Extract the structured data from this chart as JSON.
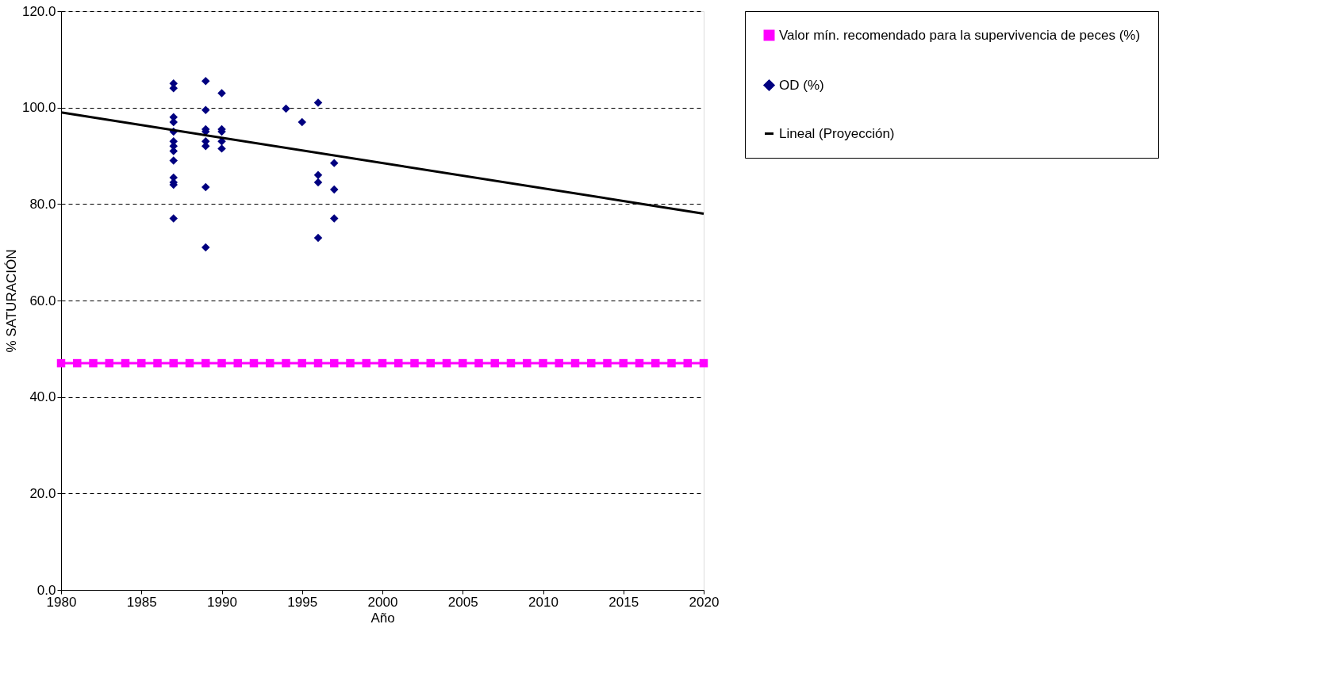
{
  "chart_data": {
    "type": "scatter",
    "xlabel": "Año",
    "ylabel": "% SATURACIÓN",
    "xlim": [
      1980,
      2020
    ],
    "xticks": [
      1980,
      1985,
      1990,
      1995,
      2000,
      2005,
      2010,
      2015,
      2020
    ],
    "ylim": [
      0,
      120
    ],
    "yticks": [
      {
        "value": 0,
        "label": "0.0"
      },
      {
        "value": 20,
        "label": "20.0"
      },
      {
        "value": 40,
        "label": "40.0"
      },
      {
        "value": 60,
        "label": "60.0"
      },
      {
        "value": 80,
        "label": "80.0"
      },
      {
        "value": 100,
        "label": "100.0"
      },
      {
        "value": 120,
        "label": "120.0"
      }
    ],
    "grid": "y",
    "legend": "right",
    "series": [
      {
        "name": "Valor mín. recomendado para la supervivencia de peces (%)",
        "type": "line",
        "marker": "square",
        "color": "#ff00ff",
        "x": [
          1980,
          1981,
          1982,
          1983,
          1984,
          1985,
          1986,
          1987,
          1988,
          1989,
          1990,
          1991,
          1992,
          1993,
          1994,
          1995,
          1996,
          1997,
          1998,
          1999,
          2000,
          2001,
          2002,
          2003,
          2004,
          2005,
          2006,
          2007,
          2008,
          2009,
          2010,
          2011,
          2012,
          2013,
          2014,
          2015,
          2016,
          2017,
          2018,
          2019,
          2020
        ],
        "values": [
          47,
          47,
          47,
          47,
          47,
          47,
          47,
          47,
          47,
          47,
          47,
          47,
          47,
          47,
          47,
          47,
          47,
          47,
          47,
          47,
          47,
          47,
          47,
          47,
          47,
          47,
          47,
          47,
          47,
          47,
          47,
          47,
          47,
          47,
          47,
          47,
          47,
          47,
          47,
          47,
          47
        ]
      },
      {
        "name": "OD (%)",
        "marker": "diamond",
        "color": "#000080",
        "x": [
          1987,
          1987,
          1987,
          1987,
          1987,
          1987,
          1987,
          1987,
          1987,
          1987,
          1987,
          1987,
          1987,
          1989,
          1989,
          1989,
          1989,
          1989,
          1989,
          1989,
          1989,
          1990,
          1990,
          1990,
          1990,
          1990,
          1994,
          1995,
          1996,
          1996,
          1996,
          1996,
          1997,
          1997,
          1997
        ],
        "values": [
          105,
          104,
          98,
          97,
          95,
          93,
          92,
          91,
          89,
          85.5,
          84.5,
          84,
          77,
          105.5,
          99.5,
          95.5,
          95,
          93,
          92,
          83.5,
          71,
          103,
          95.5,
          95,
          93,
          91.5,
          99.8,
          97,
          101,
          86,
          84.5,
          73,
          88.5,
          83,
          77
        ]
      },
      {
        "name": "Lineal (Proyección)",
        "type": "line",
        "marker": "none",
        "color": "#000000",
        "x": [
          1980,
          2020
        ],
        "values": [
          99,
          78
        ]
      }
    ]
  }
}
